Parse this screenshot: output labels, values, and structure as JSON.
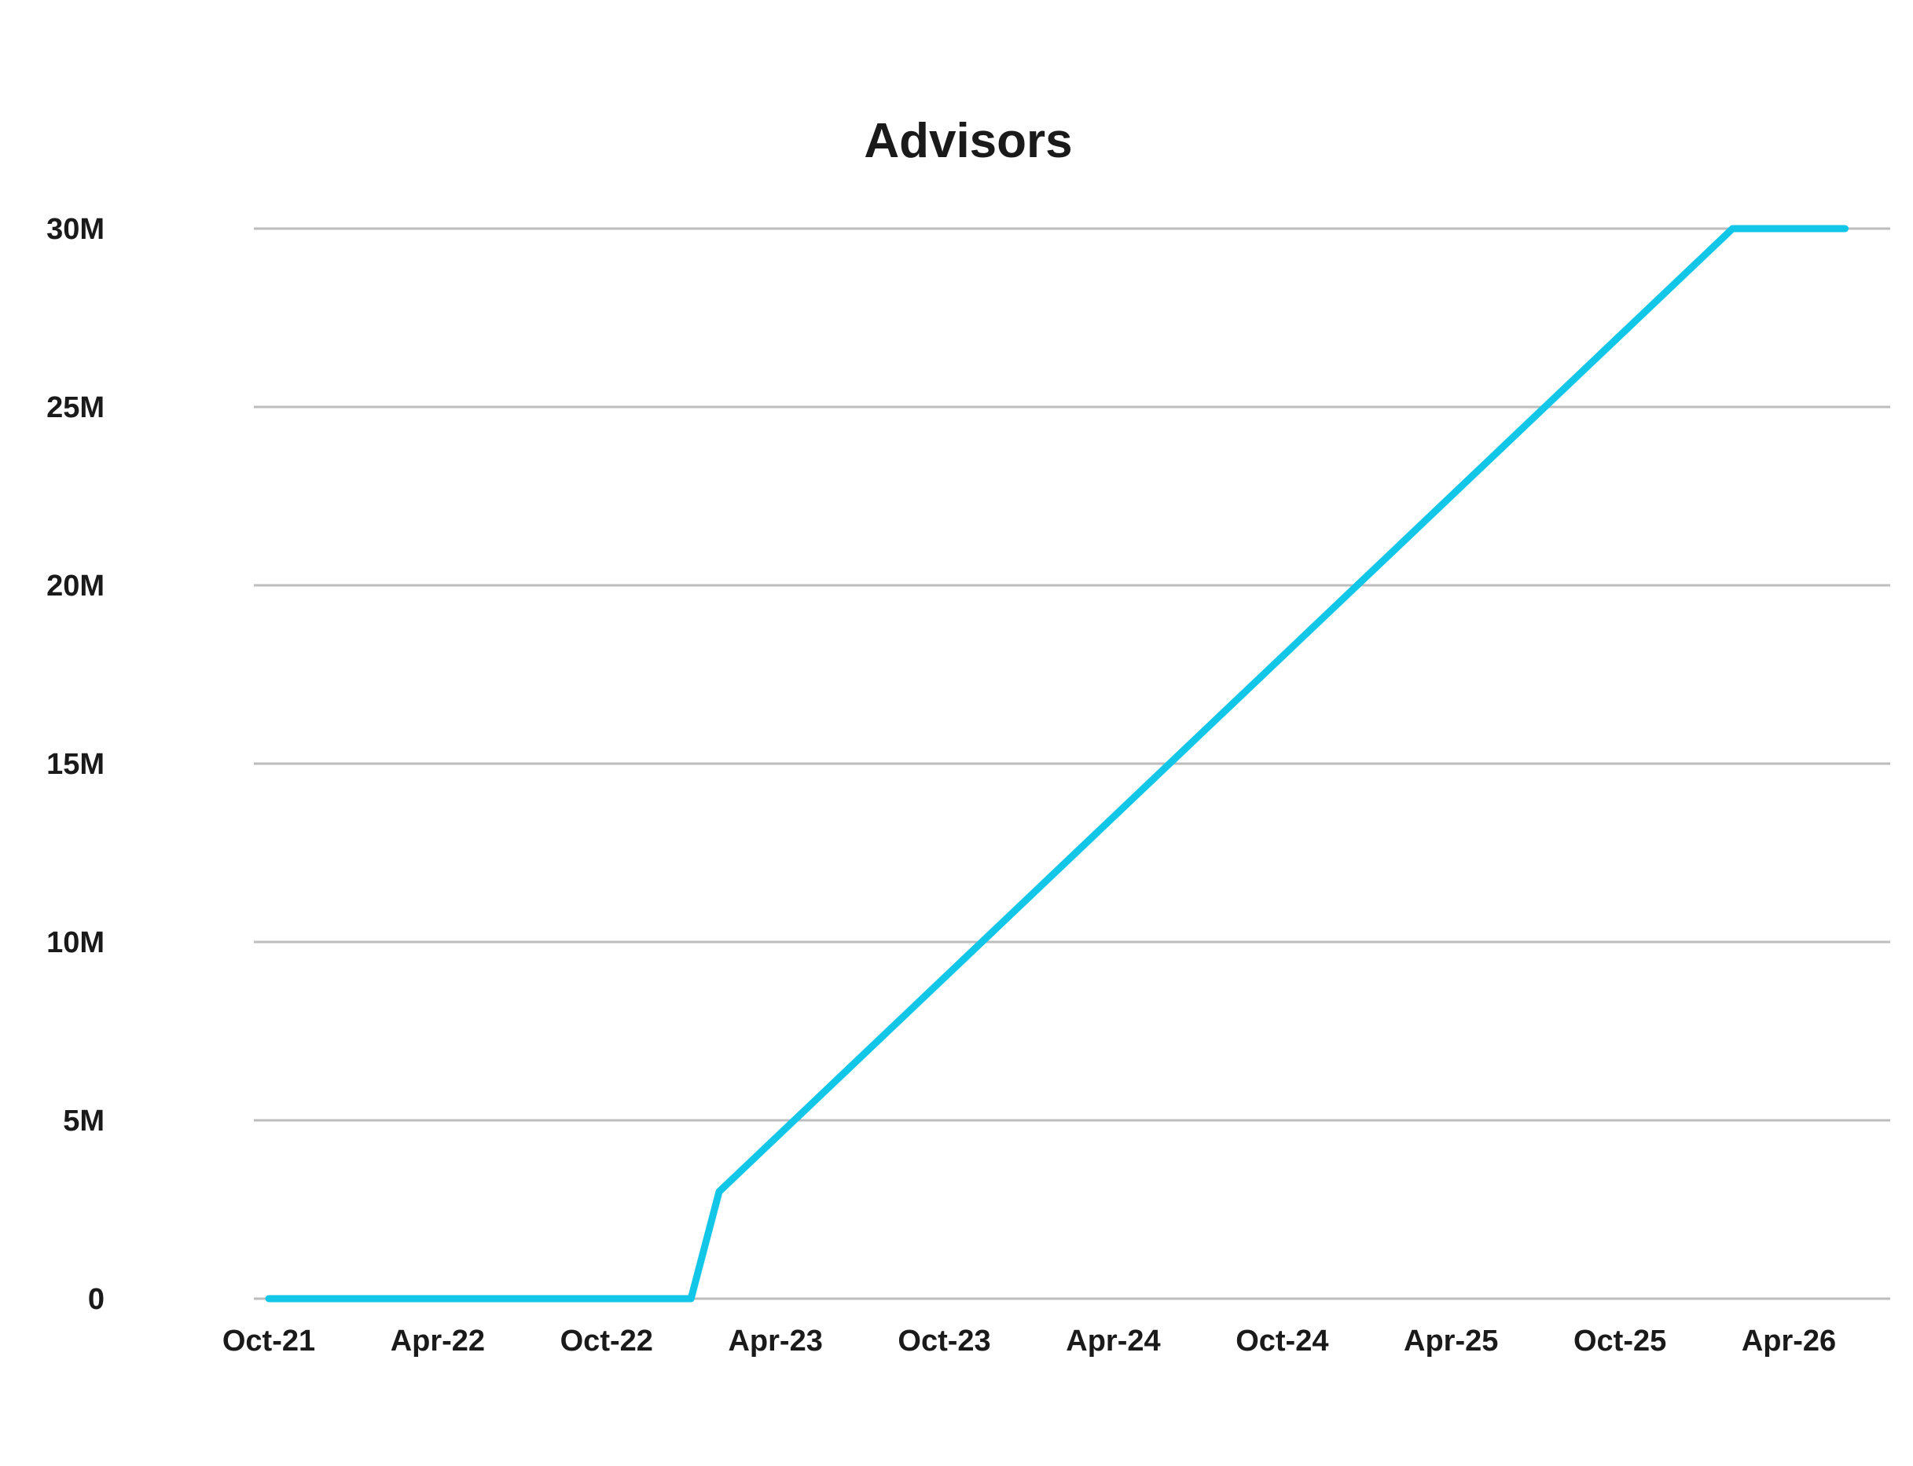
{
  "chart_data": {
    "type": "line",
    "title": "Advisors",
    "xlabel": "",
    "ylabel": "",
    "x_tick_labels": [
      "Oct-21",
      "Apr-22",
      "Oct-22",
      "Apr-23",
      "Oct-23",
      "Apr-24",
      "Oct-24",
      "Apr-25",
      "Oct-25",
      "Apr-26"
    ],
    "y_tick_labels": [
      "0",
      "5M",
      "10M",
      "15M",
      "20M",
      "25M",
      "30M"
    ],
    "y_tick_values": [
      0,
      5000000,
      10000000,
      15000000,
      20000000,
      25000000,
      30000000
    ],
    "ylim": [
      0,
      30000000
    ],
    "xlim": [
      "2021-10",
      "2026-06"
    ],
    "grid": true,
    "legend": "none",
    "series": [
      {
        "color": "#12c6e8",
        "x": [
          "2021-10",
          "2023-01",
          "2023-02",
          "2026-02",
          "2026-06"
        ],
        "values": [
          0,
          0,
          3000000,
          30000000,
          30000000
        ]
      }
    ]
  }
}
